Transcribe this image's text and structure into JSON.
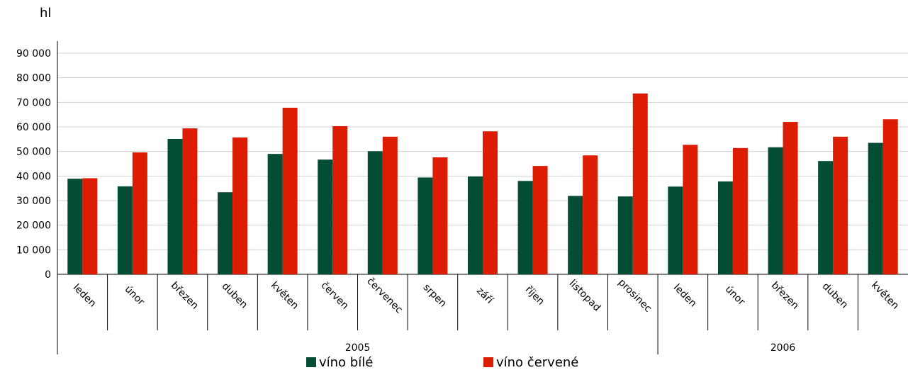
{
  "chart_data": {
    "type": "bar",
    "unit": "hl",
    "categories": [
      "leden",
      "únor",
      "březen",
      "duben",
      "květen",
      "červen",
      "červenec",
      "srpen",
      "září",
      "říjen",
      "listopad",
      "prosinec",
      "leden",
      "únor",
      "březen",
      "duben",
      "květen"
    ],
    "groups": [
      {
        "label": "2005",
        "start": 0,
        "end": 12
      },
      {
        "label": "2006",
        "start": 12,
        "end": 17
      }
    ],
    "series": [
      {
        "name": "víno bílé",
        "color": "#044d35",
        "values": [
          38900,
          35800,
          55100,
          33400,
          49000,
          46700,
          50100,
          39400,
          39800,
          38000,
          31900,
          31700,
          35700,
          37800,
          51700,
          46100,
          53500
        ]
      },
      {
        "name": "víno červené",
        "color": "#dd1c04",
        "values": [
          39100,
          49600,
          59400,
          55700,
          67800,
          60300,
          56000,
          47600,
          58200,
          44100,
          48400,
          73600,
          52700,
          51400,
          62000,
          56000,
          63100
        ]
      }
    ],
    "ylim": [
      0,
      90000
    ],
    "yticks": [
      "0",
      "10 000",
      "20 000",
      "30 000",
      "40 000",
      "50 000",
      "60 000",
      "70 000",
      "80 000",
      "90 000"
    ],
    "grid": true,
    "legend": "bottom"
  }
}
